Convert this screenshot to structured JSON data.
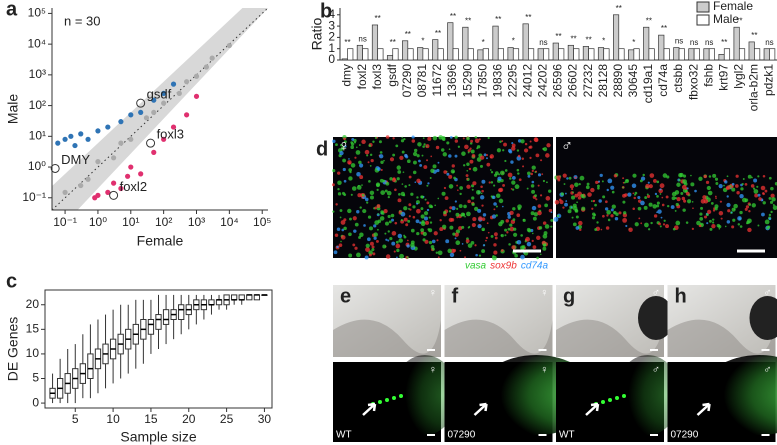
{
  "chart_data": [
    {
      "type": "scatter",
      "panel": "a",
      "xlabel": "Female",
      "ylabel": "Male",
      "annotation": "n = 30",
      "log_scale": true,
      "xlim": [
        0.04,
        150000
      ],
      "ylim": [
        0.04,
        150000
      ],
      "xticks": [
        {
          "value": 0.1,
          "label": "10⁻¹"
        },
        {
          "value": 1,
          "label": "10⁰"
        },
        {
          "value": 10,
          "label": "10¹"
        },
        {
          "value": 100,
          "label": "10²"
        },
        {
          "value": 1000,
          "label": "10³"
        },
        {
          "value": 10000,
          "label": "10⁴"
        },
        {
          "value": 100000,
          "label": "10⁵"
        }
      ],
      "yticks": [
        {
          "value": 0.1,
          "label": "10⁻¹"
        },
        {
          "value": 1,
          "label": "10⁰"
        },
        {
          "value": 10,
          "label": "10¹"
        },
        {
          "value": 100,
          "label": "10²"
        },
        {
          "value": 1000,
          "label": "10³"
        },
        {
          "value": 10000,
          "label": "10⁴"
        },
        {
          "value": 100000,
          "label": "10⁵"
        }
      ],
      "series": [
        {
          "color": "#aaaaaa",
          "x": [
            0.1,
            0.3,
            1,
            3,
            10,
            30,
            100,
            300,
            1000,
            3000,
            10000,
            0.5,
            5,
            50,
            500,
            2000
          ],
          "values": [
            0.15,
            0.25,
            1.5,
            2,
            8,
            40,
            120,
            250,
            900,
            3500,
            9000,
            0.4,
            6,
            60,
            600,
            1800
          ]
        },
        {
          "color": "#2f74b5",
          "x": [
            0.06,
            0.1,
            0.15,
            0.2,
            0.3,
            0.5,
            1,
            2,
            5,
            10,
            20,
            50,
            100,
            200
          ],
          "values": [
            6,
            8,
            10,
            5,
            12,
            8,
            15,
            20,
            30,
            50,
            60,
            150,
            250,
            500
          ]
        },
        {
          "color": "#e0306f",
          "x": [
            0.8,
            1,
            2,
            3,
            5,
            8,
            10,
            20,
            50,
            100,
            200,
            500,
            1000
          ],
          "values": [
            0.1,
            0.12,
            0.15,
            0.3,
            0.2,
            0.5,
            1,
            0.6,
            3,
            8,
            20,
            50,
            200
          ]
        }
      ],
      "annotations": [
        {
          "text": "gsdf",
          "x": 20,
          "y": 120
        },
        {
          "text": "foxl3",
          "x": 40,
          "y": 6
        },
        {
          "text": "DMY",
          "x": 0.05,
          "y": 0.9
        },
        {
          "text": "foxl2",
          "x": 3,
          "y": 0.12
        }
      ]
    },
    {
      "type": "bar",
      "panel": "b",
      "ylabel": "Ratio",
      "ylim": [
        0,
        4.6
      ],
      "yticks": [
        0,
        1,
        2,
        3,
        4
      ],
      "categories": [
        "dmy",
        "foxl2",
        "foxl3",
        "gsdf",
        "07290",
        "08781",
        "11672",
        "13696",
        "15290",
        "17850",
        "19836",
        "22295",
        "24012",
        "24202",
        "26596",
        "26602",
        "27232",
        "28128",
        "28890",
        "30645",
        "cd19a1",
        "cd74a",
        "ctsbb",
        "fbxo32",
        "fshb",
        "krt97",
        "lygl2",
        "orla-b2m",
        "pdzk1"
      ],
      "series": [
        {
          "name": "Female",
          "color": "#cccccc",
          "values": [
            0.1,
            1.3,
            3.1,
            0.4,
            1.7,
            1.1,
            1.8,
            3.3,
            2.9,
            0.9,
            3.0,
            1.1,
            3.2,
            1.0,
            1.5,
            1.3,
            1.2,
            1.1,
            4.0,
            0.9,
            2.9,
            2.2,
            1.1,
            1.0,
            1.0,
            0.5,
            2.9,
            1.6,
            1.0
          ]
        },
        {
          "name": "Male",
          "color": "#ffffff",
          "values": [
            1,
            1,
            1,
            1,
            1,
            1,
            1,
            1,
            1,
            1,
            1,
            1,
            1,
            1,
            1,
            1,
            1,
            1,
            1,
            1,
            1,
            1,
            1,
            1,
            1,
            1,
            1,
            1,
            1
          ]
        }
      ],
      "significance": [
        "**",
        "ns",
        "**",
        "**",
        "**",
        "*",
        "**",
        "**",
        "**",
        "*",
        "**",
        "*",
        "**",
        "ns",
        "**",
        "**",
        "**",
        "*",
        "**",
        "*",
        "**",
        "**",
        "ns",
        "ns",
        "ns",
        "**",
        "**",
        "**",
        "ns"
      ]
    },
    {
      "type": "box",
      "panel": "c",
      "xlabel": "Sample size",
      "ylabel": "DE Genes",
      "xlim": [
        1,
        31
      ],
      "ylim": [
        -1,
        23
      ],
      "xticks": [
        5,
        10,
        15,
        20,
        25,
        30
      ],
      "yticks": [
        0,
        5,
        10,
        15,
        20
      ],
      "x": [
        2,
        3,
        4,
        5,
        6,
        7,
        8,
        9,
        10,
        11,
        12,
        13,
        14,
        15,
        16,
        17,
        18,
        19,
        20,
        21,
        22,
        23,
        24,
        25,
        26,
        27,
        28,
        29,
        30
      ],
      "whislo": [
        0,
        0,
        0,
        0,
        1,
        1,
        2,
        3,
        4,
        5,
        6,
        7,
        8,
        10,
        11,
        12,
        13,
        14,
        15,
        16,
        17,
        18,
        19,
        19,
        20,
        20,
        21,
        21,
        22
      ],
      "q1": [
        1,
        1,
        2,
        3,
        4,
        5,
        7,
        8,
        9,
        10,
        11,
        12,
        13,
        14,
        15,
        16,
        17,
        17,
        18,
        19,
        19,
        20,
        20,
        20,
        21,
        21,
        21,
        21,
        22
      ],
      "median": [
        2,
        3,
        4,
        5,
        6,
        7,
        9,
        10,
        11,
        12,
        13,
        14,
        15,
        16,
        17,
        17,
        18,
        19,
        19,
        20,
        20,
        20,
        21,
        21,
        21,
        21,
        22,
        22,
        22
      ],
      "q3": [
        3,
        5,
        6,
        7,
        8,
        10,
        11,
        12,
        13,
        14,
        15,
        16,
        17,
        17,
        18,
        19,
        19,
        20,
        20,
        21,
        21,
        21,
        21,
        22,
        22,
        22,
        22,
        22,
        22
      ],
      "whishi": [
        6,
        9,
        11,
        12,
        14,
        16,
        17,
        18,
        19,
        20,
        20,
        21,
        21,
        21,
        22,
        22,
        22,
        22,
        22,
        22,
        22,
        22,
        22,
        22,
        22,
        22,
        22,
        22,
        22
      ]
    }
  ],
  "figure": {
    "panel_d": {
      "label": "d",
      "symbols": [
        "♀",
        "♂"
      ],
      "stains": [
        "vasa",
        "sox9b",
        "cd74a"
      ],
      "stain_colors": [
        "#33cc33",
        "#ee3333",
        "#3399ff"
      ]
    },
    "panels_eh": [
      {
        "label": "e",
        "symbol": "♀",
        "genotype": "WT"
      },
      {
        "label": "f",
        "symbol": "♀",
        "genotype": "07290"
      },
      {
        "label": "g",
        "symbol": "♂",
        "genotype": "WT"
      },
      {
        "label": "h",
        "symbol": "♂",
        "genotype": "07290"
      }
    ]
  }
}
